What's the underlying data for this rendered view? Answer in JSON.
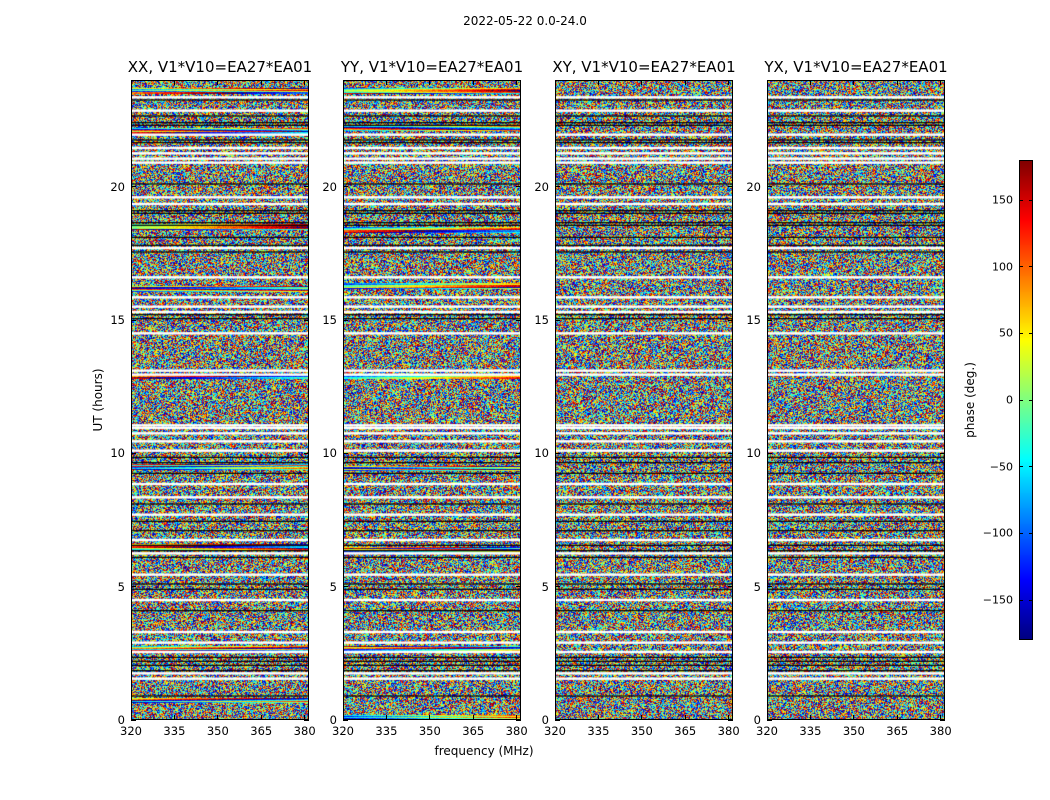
{
  "figure": {
    "title": "2022-05-22 0.0-24.0",
    "ylabel": "UT (hours)",
    "xlabel": "frequency (MHz)",
    "colorbar_label": "phase (deg.)"
  },
  "colors": {
    "colormap": "jet",
    "flagged": "#ffffff",
    "frame": "#000000"
  },
  "chart_data": {
    "type": "heatmap",
    "title": "2022-05-22 0.0-24.0",
    "xlabel": "frequency (MHz)",
    "ylabel": "UT (hours)",
    "xlim": [
      320,
      381.5
    ],
    "ylim": [
      0,
      24
    ],
    "x_ticks": [
      320,
      335,
      350,
      365,
      380
    ],
    "y_ticks": [
      0,
      5,
      10,
      15,
      20
    ],
    "panels": [
      {
        "title": "XX, V1*V10=EA27*EA01",
        "coherent_bands": [
          0.75,
          2.7,
          6.5,
          9.5,
          12.9,
          16.2,
          18.5,
          22.1,
          23.6
        ],
        "seed": 11
      },
      {
        "title": "YY, V1*V10=EA27*EA01",
        "coherent_bands": [
          0.1,
          2.7,
          6.4,
          9.45,
          12.9,
          16.3,
          18.4,
          22.2,
          23.6
        ],
        "seed": 23
      },
      {
        "title": "XY, V1*V10=EA27*EA01",
        "coherent_bands": [],
        "seed": 37
      },
      {
        "title": "YX, V1*V10=EA27*EA01",
        "coherent_bands": [],
        "seed": 53
      }
    ],
    "flagged_rows_hours": [
      1.55,
      1.75,
      2.55,
      2.9,
      3.3,
      4.5,
      5.45,
      6.25,
      6.75,
      7.7,
      8.35,
      8.85,
      10.1,
      10.45,
      10.75,
      10.95,
      11.05,
      12.95,
      13.1,
      14.5,
      15.3,
      15.5,
      15.85,
      16.6,
      17.7,
      19.35,
      19.6,
      20.9,
      21.05,
      21.25,
      21.45,
      21.95,
      22.85,
      23.35
    ],
    "black_rows_hours": [
      0.9,
      1.85,
      2.05,
      2.2,
      2.35,
      4.1,
      4.9,
      5.1,
      6.1,
      6.35,
      6.55,
      7.1,
      7.45,
      8.1,
      9.25,
      9.65,
      9.85,
      15.05,
      15.2,
      17.55,
      17.8,
      18.1,
      18.55,
      18.65,
      19.0,
      19.1,
      20.1,
      21.65,
      21.75,
      22.3,
      22.4,
      22.65,
      23.25
    ],
    "colorbar": {
      "vmin": -180,
      "vmax": 180,
      "ticks": [
        150,
        100,
        50,
        0,
        -50,
        -100,
        -150
      ],
      "tick_labels": [
        "150",
        "100",
        "50",
        "0",
        "−50",
        "−100",
        "−150"
      ]
    }
  }
}
